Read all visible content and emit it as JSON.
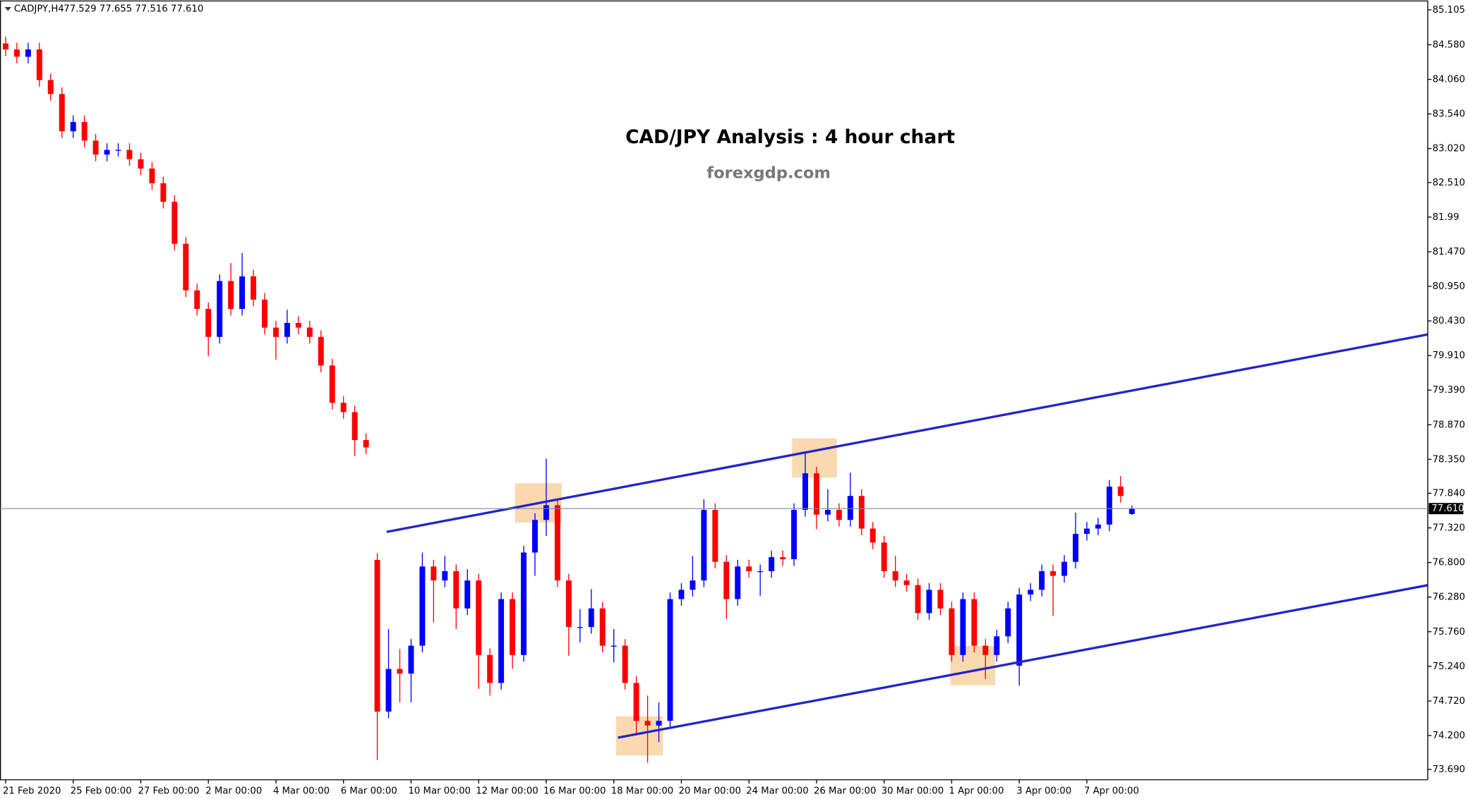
{
  "chart_data": {
    "type": "candlestick",
    "symbol": "CADJPY,H4",
    "header_values": "77.529 77.655 77.516 77.610",
    "title": "CAD/JPY Analysis : 4 hour chart",
    "subtitle": "forexgdp.com",
    "up_color": "#0000ff",
    "down_color": "#ff0000",
    "open": [
      84.6,
      84.51,
      84.4,
      84.51,
      84.05,
      83.84,
      83.28,
      83.42,
      83.14,
      82.93,
      83.0,
      83.0,
      82.86,
      82.72,
      82.5,
      82.22,
      81.59,
      80.89,
      80.61,
      80.19,
      81.03,
      80.61,
      81.1,
      80.75,
      80.33,
      80.19,
      80.4,
      80.33,
      80.19,
      79.76,
      79.2,
      79.06,
      78.64,
      76.84,
      74.56,
      75.2,
      75.13,
      75.55,
      76.74,
      76.53,
      76.67,
      76.11,
      76.53,
      75.41,
      74.99,
      76.25,
      75.41,
      76.95,
      77.44,
      77.66,
      76.53,
      75.83,
      75.83,
      76.11,
      75.55,
      75.55,
      74.99,
      74.42,
      74.35,
      74.42,
      76.25,
      76.39,
      76.53,
      77.59,
      76.81,
      76.25,
      76.74,
      76.67,
      76.67,
      76.88,
      76.85,
      77.59,
      78.14,
      77.52,
      77.59,
      77.44,
      77.8,
      77.31,
      77.1,
      76.67,
      76.53,
      76.46,
      76.04,
      76.39,
      76.11,
      75.41,
      76.25,
      75.55,
      75.41,
      75.69,
      75.25,
      76.32,
      76.39,
      76.67,
      76.6,
      76.81,
      77.23,
      77.31,
      77.37,
      77.94,
      77.529
    ],
    "high": [
      84.7,
      84.61,
      84.61,
      84.61,
      84.15,
      83.94,
      83.52,
      83.52,
      83.24,
      83.1,
      83.1,
      83.1,
      82.96,
      82.82,
      82.6,
      82.32,
      81.69,
      80.99,
      80.71,
      81.13,
      81.3,
      81.45,
      81.2,
      80.85,
      80.43,
      80.6,
      80.5,
      80.43,
      80.29,
      79.86,
      79.3,
      79.16,
      78.74,
      76.94,
      75.8,
      75.5,
      75.65,
      76.95,
      76.84,
      76.9,
      76.77,
      76.7,
      76.63,
      75.51,
      76.35,
      76.35,
      77.05,
      77.54,
      78.36,
      77.76,
      76.63,
      76.1,
      76.4,
      76.21,
      75.8,
      75.65,
      75.09,
      74.8,
      74.7,
      76.35,
      76.49,
      76.9,
      77.75,
      77.69,
      76.91,
      76.84,
      76.84,
      76.77,
      76.98,
      76.98,
      77.69,
      78.46,
      78.24,
      77.9,
      77.69,
      78.15,
      77.9,
      77.41,
      77.2,
      76.9,
      76.63,
      76.56,
      76.49,
      76.49,
      76.21,
      76.35,
      76.35,
      75.65,
      75.79,
      76.21,
      76.42,
      76.49,
      76.77,
      76.77,
      76.91,
      77.55,
      77.41,
      77.47,
      78.04,
      78.1,
      77.655
    ],
    "low": [
      84.41,
      84.3,
      84.3,
      83.95,
      83.74,
      83.18,
      83.18,
      83.04,
      82.83,
      82.83,
      82.9,
      82.76,
      82.62,
      82.4,
      82.12,
      81.49,
      80.79,
      80.51,
      79.9,
      80.09,
      80.51,
      80.51,
      80.65,
      80.23,
      79.85,
      80.09,
      80.23,
      80.09,
      79.66,
      79.1,
      78.96,
      78.4,
      78.43,
      73.83,
      74.46,
      74.7,
      74.7,
      75.45,
      75.9,
      76.43,
      75.8,
      76.01,
      74.9,
      74.8,
      74.89,
      75.2,
      75.31,
      76.6,
      77.2,
      76.43,
      75.4,
      75.6,
      75.73,
      75.45,
      75.3,
      74.89,
      74.2,
      73.79,
      74.1,
      74.32,
      76.15,
      76.29,
      76.43,
      76.71,
      75.95,
      76.15,
      76.57,
      76.3,
      76.57,
      76.75,
      76.75,
      77.49,
      77.3,
      77.42,
      77.34,
      77.34,
      77.21,
      77.0,
      76.57,
      76.43,
      76.36,
      75.94,
      75.94,
      76.01,
      75.31,
      75.31,
      75.45,
      75.05,
      75.31,
      75.59,
      74.95,
      76.22,
      76.29,
      76.0,
      76.5,
      76.71,
      77.13,
      77.21,
      77.27,
      77.7,
      77.516
    ],
    "close": [
      84.51,
      84.4,
      84.51,
      84.05,
      83.84,
      83.28,
      83.42,
      83.14,
      82.93,
      83.0,
      83.0,
      82.86,
      82.72,
      82.5,
      82.22,
      81.59,
      80.89,
      80.61,
      80.19,
      81.03,
      80.61,
      81.1,
      80.75,
      80.33,
      80.19,
      80.4,
      80.33,
      80.19,
      79.76,
      79.2,
      79.06,
      78.64,
      78.53,
      74.56,
      75.2,
      75.13,
      75.55,
      76.74,
      76.53,
      76.67,
      76.11,
      76.53,
      75.41,
      74.99,
      76.25,
      75.41,
      76.95,
      77.44,
      77.66,
      76.53,
      75.83,
      75.83,
      76.11,
      75.55,
      75.55,
      74.99,
      74.42,
      74.35,
      74.42,
      76.25,
      76.39,
      76.53,
      77.59,
      76.81,
      76.25,
      76.74,
      76.67,
      76.67,
      76.88,
      76.85,
      77.59,
      78.14,
      77.52,
      77.59,
      77.44,
      77.8,
      77.31,
      77.1,
      76.67,
      76.53,
      76.46,
      76.04,
      76.39,
      76.11,
      75.41,
      76.25,
      75.55,
      75.41,
      75.69,
      76.11,
      76.32,
      76.39,
      76.67,
      76.6,
      76.81,
      77.23,
      77.31,
      77.37,
      77.94,
      77.8,
      77.61
    ],
    "last_price": {
      "value": 77.61,
      "label": "77.610"
    },
    "ylim": [
      73.535,
      85.245
    ],
    "yticks": [
      85.105,
      {
        "value": 84.58,
        "label": "84.580"
      },
      {
        "value": 84.06,
        "label": "84.060"
      },
      {
        "value": 83.54,
        "label": "83.540"
      },
      {
        "value": 83.02,
        "label": "83.020"
      },
      {
        "value": 82.51,
        "label": "82.510"
      },
      81.99,
      {
        "value": 81.47,
        "label": "81.470"
      },
      {
        "value": 80.95,
        "label": "80.950"
      },
      {
        "value": 80.43,
        "label": "80.430"
      },
      {
        "value": 79.91,
        "label": "79.910"
      },
      {
        "value": 79.39,
        "label": "79.390"
      },
      {
        "value": 78.87,
        "label": "78.870"
      },
      {
        "value": 78.35,
        "label": "78.350"
      },
      {
        "value": 77.84,
        "label": "77.840"
      },
      {
        "value": 77.32,
        "label": "77.320"
      },
      {
        "value": 76.8,
        "label": "76.800"
      },
      {
        "value": 76.28,
        "label": "76.280"
      },
      {
        "value": 75.76,
        "label": "75.760"
      },
      {
        "value": 75.24,
        "label": "75.240"
      },
      {
        "value": 74.72,
        "label": "74.720"
      },
      {
        "value": 74.2,
        "label": "74.200"
      },
      {
        "value": 73.69,
        "label": "73.690"
      }
    ],
    "xticks": [
      {
        "value": 0,
        "label": "21 Feb 2020"
      },
      {
        "value": 6,
        "label": "25 Feb 00:00"
      },
      {
        "value": 12,
        "label": "27 Feb 00:00"
      },
      {
        "value": 18,
        "label": "2 Mar 00:00"
      },
      {
        "value": 24,
        "label": "4 Mar 00:00"
      },
      {
        "value": 30,
        "label": "6 Mar 00:00"
      },
      {
        "value": 36,
        "label": "10 Mar 00:00"
      },
      {
        "value": 42,
        "label": "12 Mar 00:00"
      },
      {
        "value": 48,
        "label": "16 Mar 00:00"
      },
      {
        "value": 54,
        "label": "18 Mar 00:00"
      },
      {
        "value": 60,
        "label": "20 Mar 00:00"
      },
      {
        "value": 66,
        "label": "24 Mar 00:00"
      },
      {
        "value": 72,
        "label": "26 Mar 00:00"
      },
      {
        "value": 78,
        "label": "30 Mar 00:00"
      },
      {
        "value": 84,
        "label": "1 Apr 00:00"
      },
      {
        "value": 90,
        "label": "3 Apr 00:00"
      },
      {
        "value": 96,
        "label": "7 Apr 00:00"
      }
    ]
  }
}
